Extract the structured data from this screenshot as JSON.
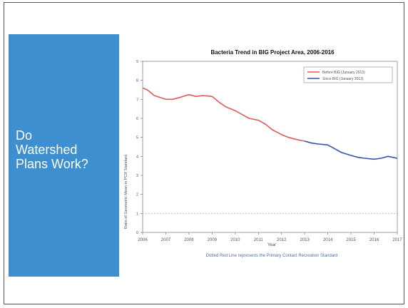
{
  "slide": {
    "title_lines": [
      "Do",
      "Watershed",
      "Plans Work?"
    ]
  },
  "colors": {
    "panel": "#3d8fd0",
    "before_series": "#e05a5a",
    "since_series": "#3a4fb0",
    "standard_line": "#e08080"
  },
  "chart_data": {
    "type": "line",
    "title": "Bacteria Trend in BIG Project Area, 2006-2016",
    "xlabel": "Year",
    "ylabel": "Ratio of Geometric Mean to PCR Standard",
    "caption": "Dotted Red Line represents the Primary Contact Recreation Standard",
    "xlim": [
      2006,
      2017
    ],
    "ylim": [
      0,
      9
    ],
    "x_ticks": [
      "2006",
      "2007",
      "2008",
      "2009",
      "2010",
      "2011",
      "2012",
      "2013",
      "2014",
      "2015",
      "2016",
      "2017"
    ],
    "y_ticks": [
      "0",
      "1",
      "2",
      "3",
      "4",
      "5",
      "6",
      "7",
      "8",
      "9"
    ],
    "legend_position": "top-right",
    "reference_line": {
      "y": 1,
      "style": "dotted"
    },
    "series": [
      {
        "name": "Before BIG (January 2013)",
        "color": "#e05a5a",
        "x": [
          2006,
          2006.2,
          2006.5,
          2007,
          2007.3,
          2007.6,
          2008,
          2008.3,
          2008.6,
          2009,
          2009.3,
          2009.6,
          2010,
          2010.3,
          2010.6,
          2011,
          2011.3,
          2011.6,
          2012,
          2012.3,
          2012.6,
          2013
        ],
        "y": [
          7.6,
          7.5,
          7.2,
          7.0,
          7.0,
          7.1,
          7.25,
          7.15,
          7.2,
          7.15,
          6.85,
          6.6,
          6.4,
          6.2,
          6.0,
          5.9,
          5.7,
          5.4,
          5.15,
          5.0,
          4.9,
          4.8
        ]
      },
      {
        "name": "Since BIG (January 2013)",
        "color": "#3a4fb0",
        "x": [
          2013,
          2013.3,
          2013.6,
          2014,
          2014.3,
          2014.6,
          2015,
          2015.3,
          2015.6,
          2016,
          2016.3,
          2016.6,
          2017
        ],
        "y": [
          4.8,
          4.7,
          4.65,
          4.6,
          4.4,
          4.2,
          4.05,
          3.95,
          3.9,
          3.85,
          3.9,
          4.0,
          3.9
        ]
      }
    ]
  }
}
